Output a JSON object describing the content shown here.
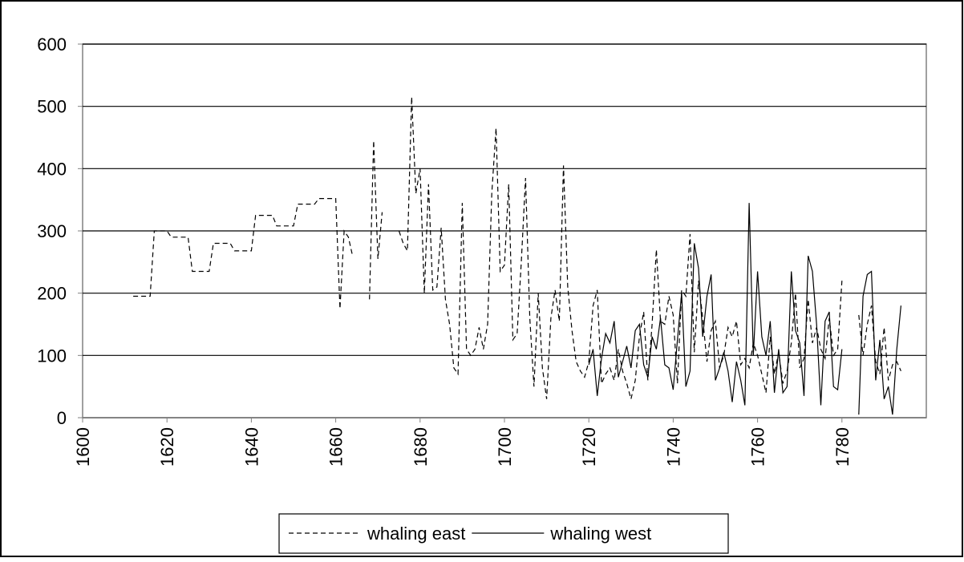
{
  "chart_data": {
    "type": "line",
    "x": [
      1612,
      1613,
      1614,
      1615,
      1616,
      1617,
      1618,
      1619,
      1620,
      1621,
      1622,
      1623,
      1624,
      1625,
      1626,
      1627,
      1628,
      1629,
      1630,
      1631,
      1632,
      1633,
      1634,
      1635,
      1636,
      1637,
      1638,
      1639,
      1640,
      1641,
      1642,
      1643,
      1644,
      1645,
      1646,
      1647,
      1648,
      1649,
      1650,
      1651,
      1652,
      1653,
      1654,
      1655,
      1656,
      1657,
      1658,
      1659,
      1660,
      1661,
      1662,
      1663,
      1664,
      1665,
      1666,
      1667,
      1668,
      1669,
      1670,
      1671,
      1672,
      1673,
      1674,
      1675,
      1676,
      1677,
      1678,
      1679,
      1680,
      1681,
      1682,
      1683,
      1684,
      1685,
      1686,
      1687,
      1688,
      1689,
      1690,
      1691,
      1692,
      1693,
      1694,
      1695,
      1696,
      1697,
      1698,
      1699,
      1700,
      1701,
      1702,
      1703,
      1704,
      1705,
      1706,
      1707,
      1708,
      1709,
      1710,
      1711,
      1712,
      1713,
      1714,
      1715,
      1716,
      1717,
      1718,
      1719,
      1720,
      1721,
      1722,
      1723,
      1724,
      1725,
      1726,
      1727,
      1728,
      1729,
      1730,
      1731,
      1732,
      1733,
      1734,
      1735,
      1736,
      1737,
      1738,
      1739,
      1740,
      1741,
      1742,
      1743,
      1744,
      1745,
      1746,
      1747,
      1748,
      1749,
      1750,
      1751,
      1752,
      1753,
      1754,
      1755,
      1756,
      1757,
      1758,
      1759,
      1760,
      1761,
      1762,
      1763,
      1764,
      1765,
      1766,
      1767,
      1768,
      1769,
      1770,
      1771,
      1772,
      1773,
      1774,
      1775,
      1776,
      1777,
      1778,
      1779,
      1780,
      1781,
      1782,
      1783,
      1784,
      1785,
      1786,
      1787,
      1788,
      1789,
      1790,
      1791,
      1792,
      1793,
      1794
    ],
    "series": [
      {
        "name": "whaling east",
        "color": "#000000",
        "style": "dashed",
        "values": [
          195,
          195,
          195,
          195,
          195,
          300,
          300,
          300,
          300,
          290,
          290,
          290,
          290,
          290,
          235,
          235,
          235,
          235,
          235,
          280,
          280,
          280,
          280,
          280,
          268,
          268,
          268,
          268,
          268,
          325,
          325,
          325,
          325,
          325,
          308,
          308,
          308,
          308,
          308,
          343,
          343,
          343,
          343,
          343,
          352,
          352,
          352,
          352,
          352,
          175,
          300,
          290,
          260,
          null,
          null,
          null,
          190,
          445,
          255,
          330,
          null,
          null,
          null,
          300,
          280,
          268,
          515,
          360,
          400,
          200,
          375,
          205,
          210,
          305,
          190,
          150,
          80,
          70,
          345,
          110,
          100,
          110,
          145,
          110,
          150,
          360,
          465,
          235,
          245,
          375,
          125,
          135,
          250,
          385,
          160,
          50,
          200,
          80,
          30,
          160,
          205,
          155,
          405,
          210,
          140,
          90,
          75,
          65,
          90,
          180,
          205,
          55,
          70,
          80,
          60,
          110,
          75,
          55,
          30,
          60,
          130,
          170,
          60,
          150,
          270,
          155,
          150,
          195,
          165,
          55,
          205,
          195,
          295,
          105,
          220,
          160,
          90,
          140,
          155,
          80,
          100,
          145,
          130,
          155,
          85,
          95,
          80,
          120,
          100,
          70,
          40,
          130,
          70,
          105,
          55,
          75,
          120,
          200,
          80,
          95,
          190,
          120,
          145,
          110,
          95,
          160,
          100,
          110,
          220,
          null,
          null,
          null,
          165,
          100,
          150,
          180,
          90,
          70,
          145,
          60,
          85,
          90,
          75
        ]
      },
      {
        "name": "whaling west",
        "color": "#000000",
        "style": "solid",
        "values": [
          null,
          null,
          null,
          null,
          null,
          null,
          null,
          null,
          null,
          null,
          null,
          null,
          null,
          null,
          null,
          null,
          null,
          null,
          null,
          null,
          null,
          null,
          null,
          null,
          null,
          null,
          null,
          null,
          null,
          null,
          null,
          null,
          null,
          null,
          null,
          null,
          null,
          null,
          null,
          null,
          null,
          null,
          null,
          null,
          null,
          null,
          null,
          null,
          null,
          null,
          null,
          null,
          null,
          null,
          null,
          null,
          null,
          null,
          null,
          null,
          null,
          null,
          null,
          null,
          null,
          null,
          null,
          null,
          null,
          null,
          null,
          null,
          null,
          null,
          null,
          null,
          null,
          null,
          null,
          null,
          null,
          null,
          null,
          null,
          null,
          null,
          null,
          null,
          null,
          null,
          null,
          null,
          null,
          null,
          null,
          null,
          null,
          null,
          null,
          null,
          null,
          null,
          null,
          null,
          null,
          null,
          null,
          null,
          85,
          110,
          35,
          95,
          135,
          120,
          155,
          65,
          90,
          115,
          80,
          140,
          150,
          85,
          65,
          130,
          110,
          160,
          85,
          80,
          45,
          125,
          200,
          50,
          75,
          280,
          240,
          130,
          195,
          230,
          60,
          80,
          105,
          75,
          25,
          90,
          60,
          20,
          345,
          100,
          235,
          130,
          100,
          155,
          40,
          110,
          40,
          50,
          235,
          140,
          120,
          35,
          260,
          235,
          150,
          20,
          155,
          170,
          50,
          45,
          110,
          null,
          null,
          null,
          5,
          195,
          230,
          235,
          60,
          125,
          30,
          50,
          5,
          110,
          180
        ]
      }
    ],
    "xlim": [
      1600,
      1800
    ],
    "xticks": [
      1600,
      1620,
      1640,
      1660,
      1680,
      1700,
      1720,
      1740,
      1760,
      1780
    ],
    "ylim": [
      0,
      600
    ],
    "yticks": [
      0,
      100,
      200,
      300,
      400,
      500,
      600
    ],
    "grid": true,
    "legend": "bottom"
  }
}
